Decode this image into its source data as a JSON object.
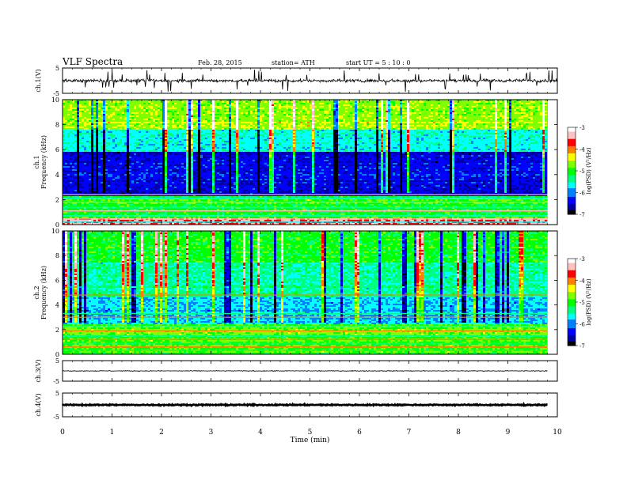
{
  "header": {
    "title": "VLF  Spectra",
    "date": "Feb. 28, 2015",
    "station": "station= ATH",
    "start_ut": "start  UT  =   5  : 10 : 0"
  },
  "colors": {
    "trace": "#000000",
    "colormap": [
      "#000000",
      "#0000a0",
      "#0000ff",
      "#0080ff",
      "#00ffff",
      "#00ff80",
      "#00ff00",
      "#80ff00",
      "#ffff00",
      "#ff8000",
      "#ff0000",
      "#ffc0c0",
      "#ffffff"
    ]
  },
  "chart_data": [
    {
      "type": "line",
      "name_label": "ch.1(V)",
      "ylim": [
        -5,
        5
      ],
      "yticks": [
        "5",
        "-5"
      ],
      "xlim": [
        0,
        10
      ],
      "baseline": 0,
      "noise": "high"
    },
    {
      "type": "heatmap",
      "ylabel": "Frequency (kHz)",
      "channel_label": "ch.1",
      "ylim": [
        0,
        10
      ],
      "yticks": [
        "0",
        "2",
        "4",
        "6",
        "8",
        "10"
      ],
      "xlim": [
        0,
        9.8
      ],
      "colorbar": {
        "label": "log(PSD) (V²/Hz)",
        "range": [
          -7,
          -3
        ],
        "ticks": [
          "-3",
          "-4",
          "-5",
          "-6",
          "-7"
        ]
      },
      "bands": [
        {
          "from": 0,
          "to": 0.5,
          "level": -3.5
        },
        {
          "from": 0.5,
          "to": 2.3,
          "level": -5.0
        },
        {
          "from": 2.3,
          "to": 2.6,
          "level": -6.5
        },
        {
          "from": 2.6,
          "to": 5.8,
          "level": -6.4
        },
        {
          "from": 5.8,
          "to": 7.6,
          "level": -5.6
        },
        {
          "from": 7.6,
          "to": 10,
          "level": -4.6
        }
      ]
    },
    {
      "type": "heatmap",
      "ylabel": "Frequency (kHz)",
      "channel_label": "ch.2",
      "ylim": [
        0,
        10
      ],
      "yticks": [
        "0",
        "2",
        "4",
        "6",
        "8",
        "10"
      ],
      "xlim": [
        0,
        9.8
      ],
      "colorbar": {
        "label": "log(PSD) (V²/Hz)",
        "range": [
          -7,
          -3
        ],
        "ticks": [
          "-3",
          "-4",
          "-5",
          "-6",
          "-7"
        ]
      },
      "bands": [
        {
          "from": 0,
          "to": 0.6,
          "level": -5.0
        },
        {
          "from": 0.6,
          "to": 2.5,
          "level": -4.8
        },
        {
          "from": 2.5,
          "to": 3.2,
          "level": -5.8
        },
        {
          "from": 3.2,
          "to": 4.6,
          "level": -5.8
        },
        {
          "from": 4.6,
          "to": 7.5,
          "level": -5.4
        },
        {
          "from": 7.5,
          "to": 10,
          "level": -5.0
        }
      ]
    },
    {
      "type": "line",
      "name_label": "ch.3(V)",
      "ylim": [
        -5,
        5
      ],
      "yticks": [
        "5",
        "-5"
      ],
      "xlim": [
        0,
        9.8
      ],
      "baseline": 0,
      "noise": "low"
    },
    {
      "type": "line",
      "name_label": "ch.4(V)",
      "ylim": [
        -5,
        5
      ],
      "yticks": [
        "5",
        "-5"
      ],
      "xlim": [
        0,
        9.8
      ],
      "baseline": 0,
      "noise": "thick"
    }
  ],
  "xaxis": {
    "label": "Time  (min)",
    "range": [
      0,
      10
    ],
    "ticks": [
      "0",
      "1",
      "2",
      "3",
      "4",
      "5",
      "6",
      "7",
      "8",
      "9",
      "10"
    ]
  }
}
